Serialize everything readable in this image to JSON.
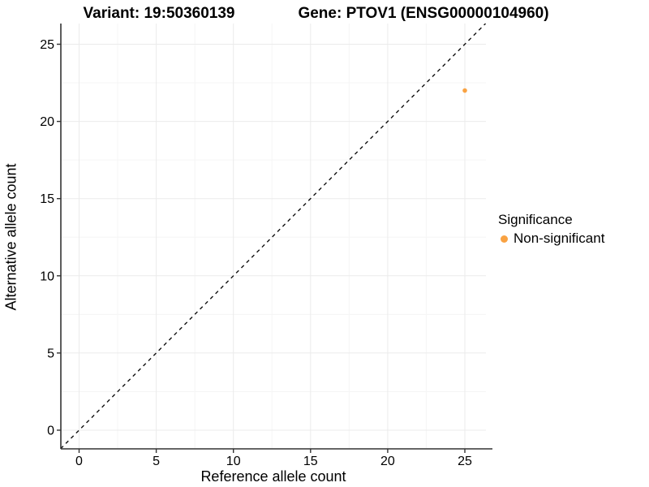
{
  "header": {
    "variant_title": "Variant: 19:50360139",
    "gene_title": "Gene: PTOV1 (ENSG00000104960)"
  },
  "chart_data": {
    "type": "scatter",
    "title": "Variant: 19:50360139 | Gene: PTOV1 (ENSG00000104960)",
    "xlabel": "Reference allele count",
    "ylabel": "Alternative allele count",
    "xlim": [
      -1.2,
      26.4
    ],
    "ylim": [
      -1.2,
      26.4
    ],
    "x_ticks": [
      0,
      5,
      10,
      15,
      20,
      25
    ],
    "y_ticks": [
      0,
      5,
      10,
      15,
      20,
      25
    ],
    "grid": "major and minor gridlines, light gray on white",
    "reference_line": {
      "type": "abline",
      "slope": 1,
      "intercept": 0,
      "style": "dashed",
      "color": "#111111"
    },
    "series": [
      {
        "name": "Non-significant",
        "color": "#F9A242",
        "points": [
          {
            "x": 25,
            "y": 22
          }
        ]
      }
    ],
    "legend": {
      "title": "Significance",
      "position": "right",
      "items": [
        {
          "label": "Non-significant",
          "color": "#F9A242"
        }
      ]
    },
    "colors": {
      "point": "#F9A242",
      "reference_line": "#111111",
      "axis_line": "#333333",
      "grid_major": "#EBEBEB",
      "grid_minor": "#F5F5F5",
      "background": "#FFFFFF",
      "text": "#000000"
    }
  }
}
